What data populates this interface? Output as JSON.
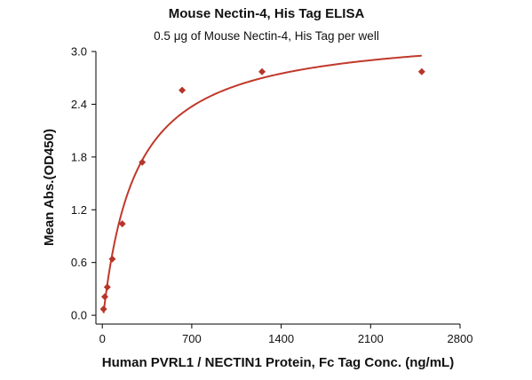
{
  "chart_data": {
    "type": "scatter",
    "title": "Mouse Nectin-4, His Tag ELISA",
    "subtitle": "0.5 μg of Mouse Nectin-4, His Tag per well",
    "xlabel": "Human PVRL1 / NECTIN1 Protein, Fc Tag Conc. (ng/mL)",
    "ylabel": "Mean Abs.(OD450)",
    "xlim": [
      -50,
      2800
    ],
    "ylim": [
      -0.1,
      3.0
    ],
    "xticks": [
      0,
      700,
      1400,
      2100,
      2800
    ],
    "yticks": [
      0.0,
      0.6,
      1.2,
      1.8,
      2.4,
      3.0
    ],
    "xtick_labels": [
      "0",
      "700",
      "1400",
      "2100",
      "2800"
    ],
    "ytick_labels": [
      "0.0",
      "0.6",
      "1.2",
      "1.8",
      "2.4",
      "3.0"
    ],
    "marker_color": "#b5352b",
    "line_color": "#c0392b",
    "grid": false,
    "fit": "saturation curve",
    "series": [
      {
        "x": [
          9.77,
          19.53,
          39.06,
          78.13,
          156.25,
          312.5,
          625,
          1250,
          2500
        ],
        "y": [
          0.07,
          0.21,
          0.32,
          0.64,
          1.04,
          1.74,
          2.56,
          2.77,
          2.77
        ]
      }
    ]
  }
}
